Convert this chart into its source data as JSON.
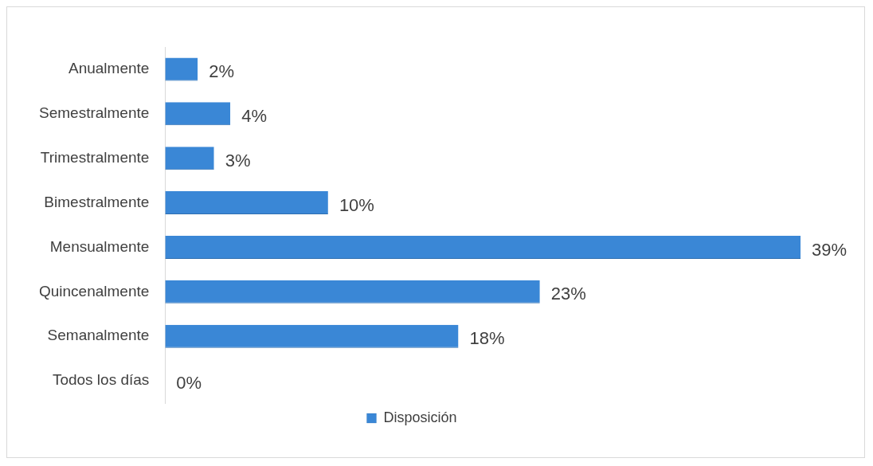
{
  "chart_data": {
    "type": "bar",
    "orientation": "horizontal",
    "categories": [
      "Anualmente",
      "Semestralmente",
      "Trimestralmente",
      "Bimestralmente",
      "Mensualmente",
      "Quincenalmente",
      "Semanalmente",
      "Todos los días"
    ],
    "series": [
      {
        "name": "Disposición",
        "color": "#3a87d6",
        "values": [
          2,
          4,
          3,
          10,
          39,
          23,
          18,
          0
        ],
        "value_labels": [
          "2%",
          "4%",
          "3%",
          "10%",
          "39%",
          "23%",
          "18%",
          "0%"
        ]
      }
    ],
    "legend": "bottom",
    "grid": false
  }
}
